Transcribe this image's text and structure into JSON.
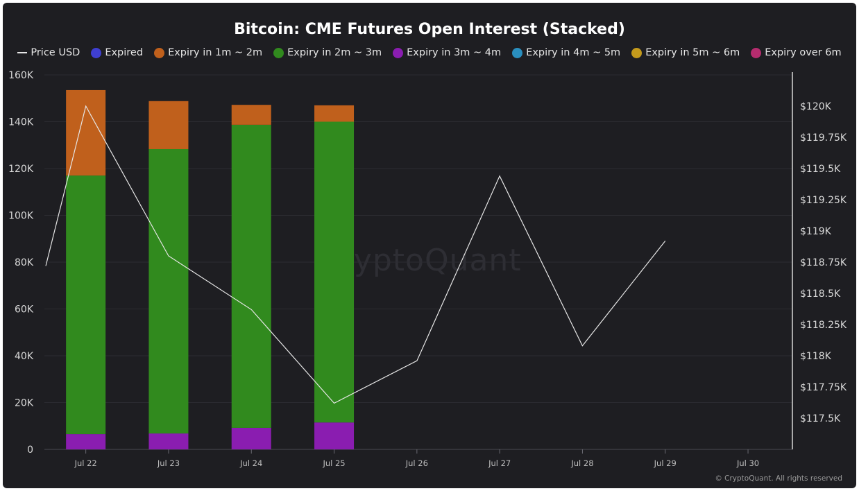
{
  "chart_data": {
    "type": "bar",
    "title": "Bitcoin: CME Futures Open Interest (Stacked)",
    "categories": [
      "Jul 22",
      "Jul 23",
      "Jul 24",
      "Jul 25",
      "Jul 26",
      "Jul 27",
      "Jul 28",
      "Jul 29",
      "Jul 30"
    ],
    "y_left": {
      "ylim": [
        0,
        160000
      ],
      "ticks": [
        "0",
        "20K",
        "40K",
        "60K",
        "80K",
        "100K",
        "120K",
        "140K",
        "160K"
      ]
    },
    "y_right": {
      "ylim": [
        117250,
        120250
      ],
      "ticks": [
        "$117.5K",
        "$117.75K",
        "$118K",
        "$118.25K",
        "$118.5K",
        "$118.75K",
        "$119K",
        "$119.25K",
        "$119.5K",
        "$119.75K",
        "$120K"
      ]
    },
    "grid": true,
    "legend_position": "top",
    "series": [
      {
        "name": "Expired",
        "color": "#3f3fd1",
        "values": [
          0,
          0,
          0,
          0,
          null,
          null,
          null,
          null,
          null
        ]
      },
      {
        "name": "Expiry in 1m ~ 2m",
        "color": "#c0601c",
        "values": [
          36500,
          20500,
          8500,
          7000,
          null,
          null,
          null,
          null,
          null
        ]
      },
      {
        "name": "Expiry in 2m ~ 3m",
        "color": "#318a1e",
        "values": [
          110500,
          121500,
          129500,
          128500,
          null,
          null,
          null,
          null,
          null
        ]
      },
      {
        "name": "Expiry in 3m ~ 4m",
        "color": "#8a1db0",
        "values": [
          6500,
          6800,
          9200,
          11500,
          null,
          null,
          null,
          null,
          null
        ]
      },
      {
        "name": "Expiry in 4m ~ 5m",
        "color": "#2a8fbf",
        "values": [
          0,
          0,
          0,
          0,
          null,
          null,
          null,
          null,
          null
        ]
      },
      {
        "name": "Expiry in 5m ~ 6m",
        "color": "#c49a1c",
        "values": [
          0,
          0,
          0,
          0,
          null,
          null,
          null,
          null,
          null
        ]
      },
      {
        "name": "Expiry over 6m",
        "color": "#b52c6e",
        "values": [
          0,
          0,
          0,
          0,
          null,
          null,
          null,
          null,
          null
        ]
      }
    ],
    "line": {
      "name": "Price USD",
      "color": "#e6e6e6",
      "points": [
        {
          "x": "Jul 21.5",
          "xi": -0.5,
          "y": 118720
        },
        {
          "x": "Jul 22",
          "xi": 0,
          "y": 120000
        },
        {
          "x": "Jul 23",
          "xi": 1,
          "y": 118800
        },
        {
          "x": "Jul 24",
          "xi": 2,
          "y": 118370
        },
        {
          "x": "Jul 25",
          "xi": 3,
          "y": 117620
        },
        {
          "x": "Jul 26",
          "xi": 4,
          "y": 117960
        },
        {
          "x": "Jul 27",
          "xi": 5,
          "y": 119440
        },
        {
          "x": "Jul 28",
          "xi": 6,
          "y": 118080
        },
        {
          "x": "Jul 29",
          "xi": 7,
          "y": 118920
        }
      ]
    }
  },
  "watermark": "CryptoQuant",
  "footer": "© CryptoQuant. All rights reserved"
}
